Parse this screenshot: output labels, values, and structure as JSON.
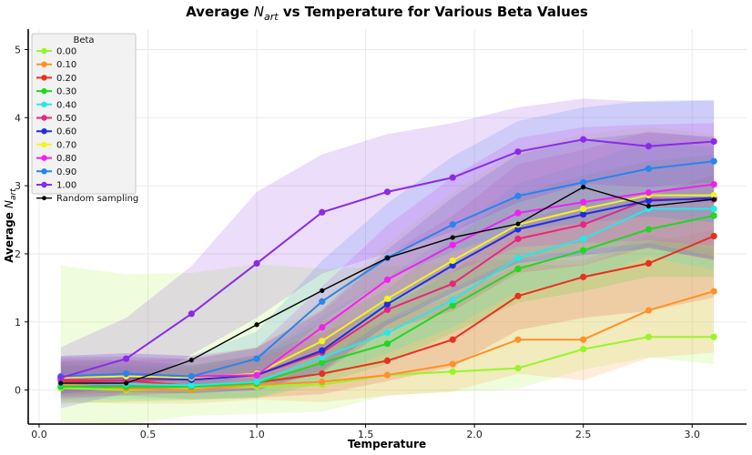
{
  "chart_data": {
    "type": "line",
    "title": "Average N_art vs Temperature for Various Beta Values",
    "title_prefix": "Average ",
    "title_symbol": "N",
    "title_subscript": "art",
    "title_suffix": " vs Temperature for Various Beta Values",
    "xlabel": "Temperature",
    "ylabel": "Average N_art",
    "ylabel_prefix": "Average ",
    "ylabel_symbol": "N",
    "ylabel_subscript": "art",
    "xlim": [
      -0.05,
      3.25
    ],
    "ylim": [
      -0.5,
      5.3
    ],
    "xticks": [
      0.0,
      0.5,
      1.0,
      1.5,
      2.0,
      2.5,
      3.0
    ],
    "xtick_labels": [
      "0.0",
      "0.5",
      "1.0",
      "1.5",
      "2.0",
      "2.5",
      "3.0"
    ],
    "yticks": [
      0,
      1,
      2,
      3,
      4,
      5
    ],
    "ytick_labels": [
      "0",
      "1",
      "2",
      "3",
      "4",
      "5"
    ],
    "grid": true,
    "legend_title": "Beta",
    "legend_position": "upper-left",
    "x": [
      0.1,
      0.4,
      0.7,
      1.0,
      1.3,
      1.6,
      1.9,
      2.2,
      2.5,
      2.8,
      3.1
    ],
    "series": [
      {
        "name": "0.00",
        "color": "#99f526",
        "values": [
          0.03,
          0.0,
          0.02,
          0.05,
          0.08,
          0.22,
          0.27,
          0.32,
          0.6,
          0.78,
          0.78
        ],
        "band": [
          [
            0.5,
            1.8
          ],
          [
            0.5,
            1.7
          ],
          [
            0.4,
            1.7
          ],
          [
            0.4,
            1.8
          ],
          [
            0.4,
            1.7
          ],
          [
            0.3,
            1.6
          ],
          [
            0.3,
            1.6
          ],
          [
            0.3,
            1.6
          ],
          [
            0.3,
            1.3
          ],
          [
            0.3,
            1.5
          ],
          [
            0.4,
            1.3
          ]
        ]
      },
      {
        "name": "0.10",
        "color": "#ff9126",
        "values": [
          0.08,
          0.02,
          0.0,
          0.08,
          0.12,
          0.22,
          0.38,
          0.74,
          0.74,
          1.17,
          1.45
        ],
        "band": [
          [
            0.25,
            0.3
          ],
          [
            0.22,
            0.3
          ],
          [
            0.2,
            0.3
          ],
          [
            0.22,
            0.4
          ],
          [
            0.3,
            0.6
          ],
          [
            0.3,
            0.8
          ],
          [
            0.4,
            1.0
          ],
          [
            0.5,
            1.1
          ],
          [
            0.6,
            1.1
          ],
          [
            0.7,
            1.0
          ],
          [
            0.9,
            0.9
          ]
        ]
      },
      {
        "name": "0.20",
        "color": "#e8301f",
        "values": [
          0.12,
          0.14,
          0.06,
          0.11,
          0.24,
          0.43,
          0.74,
          1.38,
          1.66,
          1.86,
          2.26
        ],
        "band": [
          [
            0.25,
            0.3
          ],
          [
            0.22,
            0.3
          ],
          [
            0.2,
            0.3
          ],
          [
            0.22,
            0.4
          ],
          [
            0.3,
            0.6
          ],
          [
            0.3,
            0.8
          ],
          [
            0.4,
            1.0
          ],
          [
            0.5,
            1.1
          ],
          [
            0.6,
            1.1
          ],
          [
            0.7,
            1.0
          ],
          [
            0.9,
            0.9
          ]
        ]
      },
      {
        "name": "0.30",
        "color": "#1fd81f",
        "values": [
          0.05,
          0.05,
          0.05,
          0.1,
          0.4,
          0.68,
          1.24,
          1.78,
          2.05,
          2.36,
          2.56
        ],
        "band": [
          [
            0.25,
            0.3
          ],
          [
            0.22,
            0.3
          ],
          [
            0.2,
            0.3
          ],
          [
            0.22,
            0.4
          ],
          [
            0.3,
            0.6
          ],
          [
            0.3,
            0.8
          ],
          [
            0.4,
            1.0
          ],
          [
            0.5,
            1.1
          ],
          [
            0.6,
            1.1
          ],
          [
            0.7,
            1.0
          ],
          [
            0.9,
            0.9
          ]
        ]
      },
      {
        "name": "0.40",
        "color": "#26e8e8",
        "values": [
          0.1,
          0.09,
          0.07,
          0.12,
          0.48,
          0.84,
          1.32,
          1.94,
          2.22,
          2.66,
          2.66
        ],
        "band": [
          [
            0.25,
            0.3
          ],
          [
            0.22,
            0.3
          ],
          [
            0.2,
            0.3
          ],
          [
            0.22,
            0.4
          ],
          [
            0.3,
            0.6
          ],
          [
            0.3,
            0.8
          ],
          [
            0.4,
            1.0
          ],
          [
            0.5,
            1.1
          ],
          [
            0.6,
            1.1
          ],
          [
            0.7,
            1.0
          ],
          [
            0.9,
            0.9
          ]
        ]
      },
      {
        "name": "0.50",
        "color": "#e8267f",
        "values": [
          0.15,
          0.14,
          0.16,
          0.22,
          0.55,
          1.18,
          1.56,
          2.22,
          2.43,
          2.8,
          2.8
        ],
        "band": [
          [
            0.25,
            0.3
          ],
          [
            0.22,
            0.3
          ],
          [
            0.2,
            0.3
          ],
          [
            0.22,
            0.4
          ],
          [
            0.3,
            0.6
          ],
          [
            0.3,
            0.8
          ],
          [
            0.4,
            1.0
          ],
          [
            0.5,
            1.1
          ],
          [
            0.6,
            1.1
          ],
          [
            0.7,
            1.0
          ],
          [
            0.9,
            0.9
          ]
        ]
      },
      {
        "name": "0.60",
        "color": "#1f2ee0",
        "values": [
          0.18,
          0.19,
          0.15,
          0.22,
          0.58,
          1.26,
          1.83,
          2.36,
          2.58,
          2.78,
          2.82
        ],
        "band": [
          [
            0.25,
            0.3
          ],
          [
            0.22,
            0.3
          ],
          [
            0.2,
            0.3
          ],
          [
            0.22,
            0.4
          ],
          [
            0.3,
            0.6
          ],
          [
            0.3,
            0.8
          ],
          [
            0.4,
            1.0
          ],
          [
            0.5,
            1.1
          ],
          [
            0.6,
            1.1
          ],
          [
            0.7,
            1.0
          ],
          [
            0.9,
            0.9
          ]
        ]
      },
      {
        "name": "0.70",
        "color": "#f2f226",
        "values": [
          0.18,
          0.2,
          0.18,
          0.24,
          0.72,
          1.34,
          1.9,
          2.43,
          2.66,
          2.86,
          2.86
        ],
        "band": [
          [
            0.25,
            0.3
          ],
          [
            0.22,
            0.3
          ],
          [
            0.2,
            0.3
          ],
          [
            0.22,
            0.4
          ],
          [
            0.3,
            0.6
          ],
          [
            0.3,
            0.8
          ],
          [
            0.4,
            1.0
          ],
          [
            0.5,
            1.1
          ],
          [
            0.6,
            1.1
          ],
          [
            0.7,
            1.0
          ],
          [
            0.9,
            0.9
          ]
        ]
      },
      {
        "name": "0.80",
        "color": "#f21ff2",
        "values": [
          0.2,
          0.24,
          0.2,
          0.22,
          0.92,
          1.62,
          2.13,
          2.6,
          2.76,
          2.9,
          3.02
        ],
        "band": [
          [
            0.25,
            0.3
          ],
          [
            0.22,
            0.3
          ],
          [
            0.2,
            0.3
          ],
          [
            0.22,
            0.4
          ],
          [
            0.3,
            0.6
          ],
          [
            0.3,
            0.8
          ],
          [
            0.4,
            1.0
          ],
          [
            0.5,
            1.1
          ],
          [
            0.6,
            1.1
          ],
          [
            0.7,
            1.0
          ],
          [
            0.9,
            0.9
          ]
        ]
      },
      {
        "name": "0.90",
        "color": "#2685ee",
        "values": [
          0.2,
          0.24,
          0.2,
          0.46,
          1.3,
          1.94,
          2.43,
          2.85,
          3.05,
          3.25,
          3.36
        ],
        "band": [
          [
            0.25,
            0.3
          ],
          [
            0.22,
            0.3
          ],
          [
            0.2,
            0.3
          ],
          [
            0.22,
            0.4
          ],
          [
            0.3,
            0.6
          ],
          [
            0.3,
            0.8
          ],
          [
            0.4,
            1.0
          ],
          [
            0.5,
            1.1
          ],
          [
            0.6,
            1.1
          ],
          [
            0.7,
            1.0
          ],
          [
            0.9,
            0.9
          ]
        ]
      },
      {
        "name": "1.00",
        "color": "#8a2be8",
        "values": [
          0.18,
          0.46,
          1.12,
          1.86,
          2.61,
          2.91,
          3.12,
          3.5,
          3.68,
          3.58,
          3.65
        ],
        "band": [
          [
            0.45,
            0.45
          ],
          [
            0.5,
            0.6
          ],
          [
            0.6,
            0.7
          ],
          [
            0.8,
            1.05
          ],
          [
            0.9,
            0.85
          ],
          [
            0.9,
            0.85
          ],
          [
            0.8,
            0.8
          ],
          [
            0.75,
            0.65
          ],
          [
            0.65,
            0.6
          ],
          [
            0.6,
            0.65
          ],
          [
            0.6,
            0.6
          ]
        ]
      },
      {
        "name": "Random sampling",
        "color": "#000000",
        "values": [
          0.1,
          0.1,
          0.44,
          0.96,
          1.46,
          1.94,
          2.24,
          2.44,
          2.98,
          2.7,
          2.8
        ]
      }
    ]
  }
}
